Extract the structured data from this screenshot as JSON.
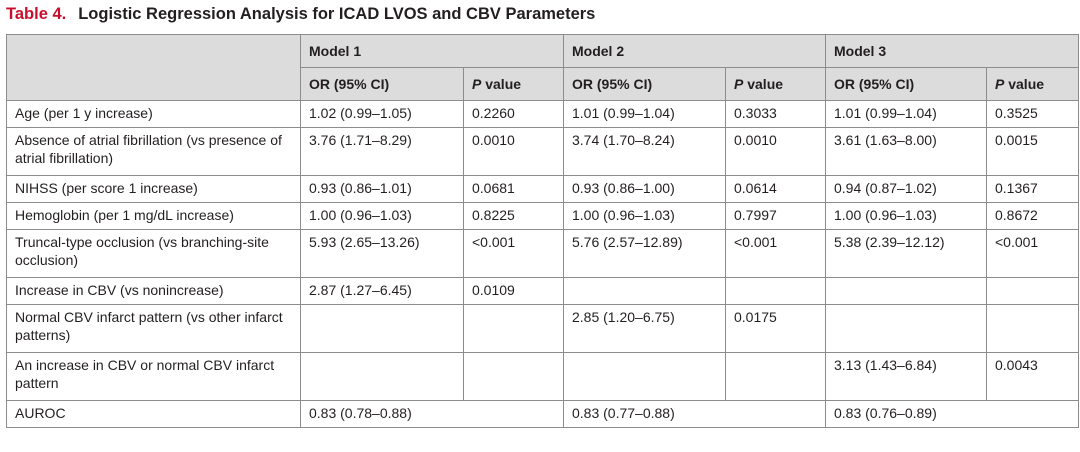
{
  "caption": {
    "label": "Table 4.",
    "title": "Logistic Regression Analysis for ICAD LVOS and CBV Parameters"
  },
  "header": {
    "models": [
      "Model 1",
      "Model 2",
      "Model 3"
    ],
    "or_label": "OR (95% CI)",
    "p_label_italic": "P",
    "p_label_rest": " value"
  },
  "rows": [
    {
      "label": "Age (per 1 y increase)",
      "m1_or": "1.02 (0.99–1.05)",
      "m1_p": "0.2260",
      "m2_or": "1.01 (0.99–1.04)",
      "m2_p": "0.3033",
      "m3_or": "1.01 (0.99–1.04)",
      "m3_p": "0.3525"
    },
    {
      "label": "Absence of atrial fibrillation (vs presence of atrial fibrillation)",
      "m1_or": "3.76 (1.71–8.29)",
      "m1_p": "0.0010",
      "m2_or": "3.74 (1.70–8.24)",
      "m2_p": "0.0010",
      "m3_or": "3.61 (1.63–8.00)",
      "m3_p": "0.0015"
    },
    {
      "label": "NIHSS (per score 1 increase)",
      "m1_or": "0.93 (0.86–1.01)",
      "m1_p": "0.0681",
      "m2_or": "0.93 (0.86–1.00)",
      "m2_p": "0.0614",
      "m3_or": "0.94 (0.87–1.02)",
      "m3_p": "0.1367"
    },
    {
      "label": "Hemoglobin (per 1 mg/dL increase)",
      "m1_or": "1.00 (0.96–1.03)",
      "m1_p": "0.8225",
      "m2_or": "1.00 (0.96–1.03)",
      "m2_p": "0.7997",
      "m3_or": "1.00 (0.96–1.03)",
      "m3_p": "0.8672"
    },
    {
      "label": "Truncal-type occlusion (vs branching-site occlusion)",
      "m1_or": "5.93 (2.65–13.26)",
      "m1_p": "<0.001",
      "m2_or": "5.76 (2.57–12.89)",
      "m2_p": "<0.001",
      "m3_or": "5.38 (2.39–12.12)",
      "m3_p": "<0.001"
    },
    {
      "label": "Increase in CBV (vs nonincrease)",
      "m1_or": "2.87 (1.27–6.45)",
      "m1_p": "0.0109",
      "m2_or": "",
      "m2_p": "",
      "m3_or": "",
      "m3_p": ""
    },
    {
      "label": "Normal CBV infarct pattern (vs other infarct patterns)",
      "m1_or": "",
      "m1_p": "",
      "m2_or": "2.85 (1.20–6.75)",
      "m2_p": "0.0175",
      "m3_or": "",
      "m3_p": ""
    },
    {
      "label": "An increase in CBV or normal CBV infarct pattern",
      "m1_or": "",
      "m1_p": "",
      "m2_or": "",
      "m2_p": "",
      "m3_or": "3.13 (1.43–6.84)",
      "m3_p": "0.0043"
    }
  ],
  "auroc": {
    "label": "AUROC",
    "m1": "0.83 (0.78–0.88)",
    "m2": "0.83 (0.77–0.88)",
    "m3": "0.83 (0.76–0.89)"
  }
}
